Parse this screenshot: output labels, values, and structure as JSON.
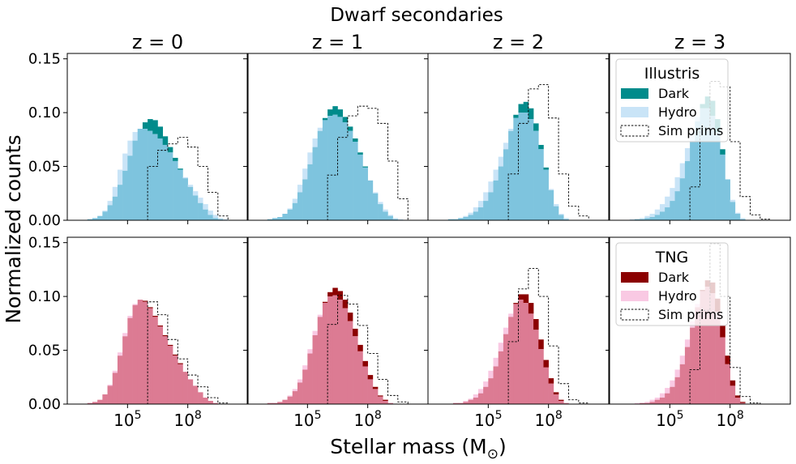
{
  "figure": {
    "suptitle": "Dwarf secondaries",
    "ylabel": "Normalized counts",
    "xlabel": "Stellar mass (M",
    "xlabel_sub": "⊙",
    "xlabel_close": ")"
  },
  "colors": {
    "illustris_dark": "#008b8b",
    "illustris_hydro": "#c9e4f7",
    "illustris_overlap": "#7ec4de",
    "tng_dark": "#8b0000",
    "tng_hydro": "#f9c9e3",
    "tng_overlap": "#dc7b93"
  },
  "legends": {
    "illustris": {
      "title": "Illustris",
      "dark": "Dark",
      "hydro": "Hydro",
      "sim": "Sim prims"
    },
    "tng": {
      "title": "TNG",
      "dark": "Dark",
      "hydro": "Hydro",
      "sim": "Sim prims"
    }
  },
  "chart_data": {
    "type": "histogram-grid",
    "xscale": "log",
    "x_bin_edges_log10": [
      3.0,
      3.5,
      4.0,
      4.5,
      5.0,
      5.5,
      6.0,
      6.5,
      7.0,
      7.5,
      8.0,
      8.5,
      9.0,
      9.5,
      10.0
    ],
    "xlim_log10": [
      2.0,
      11.0
    ],
    "ylim": [
      0,
      0.155
    ],
    "yticks": [
      "0.00",
      "0.05",
      "0.10",
      "0.15"
    ],
    "xticks": [
      {
        "base": "10",
        "exp": "5",
        "log10": 5
      },
      {
        "base": "10",
        "exp": "8",
        "log10": 8
      }
    ],
    "row_labels": [
      "Illustris",
      "TNG"
    ],
    "col_titles": [
      "z = 0",
      "z = 1",
      "z = 2",
      "z = 3"
    ],
    "panels": [
      {
        "row": 0,
        "col": 0,
        "title": "z = 0",
        "x_bin_left": [
          2.5,
          2.75,
          3.0,
          3.25,
          3.5,
          3.75,
          4.0,
          4.25,
          4.5,
          4.75,
          5.0,
          5.25,
          5.5,
          5.75,
          6.0,
          6.25,
          6.5,
          6.75,
          7.0,
          7.25,
          7.5,
          7.75,
          8.0,
          8.25,
          8.5,
          8.75,
          9.0,
          9.25,
          9.5,
          9.75
        ],
        "dark": [
          0.0,
          0.0,
          0.001,
          0.002,
          0.004,
          0.008,
          0.014,
          0.022,
          0.033,
          0.046,
          0.06,
          0.074,
          0.085,
          0.091,
          0.094,
          0.093,
          0.087,
          0.078,
          0.068,
          0.058,
          0.048,
          0.039,
          0.031,
          0.023,
          0.016,
          0.01,
          0.005,
          0.002,
          0.001,
          0.0
        ],
        "hydro": [
          0.0,
          0.0,
          0.001,
          0.002,
          0.004,
          0.009,
          0.018,
          0.031,
          0.047,
          0.062,
          0.074,
          0.082,
          0.085,
          0.085,
          0.083,
          0.08,
          0.076,
          0.07,
          0.063,
          0.055,
          0.047,
          0.04,
          0.033,
          0.027,
          0.021,
          0.015,
          0.009,
          0.005,
          0.002,
          0.001
        ],
        "sim_prims": [
          0.0,
          0.0,
          0.0,
          0.0,
          0.0,
          0.0,
          0.0,
          0.0,
          0.0,
          0.0,
          0.0,
          0.0,
          0.0,
          0.0,
          0.05,
          0.05,
          0.065,
          0.065,
          0.071,
          0.071,
          0.077,
          0.077,
          0.068,
          0.068,
          0.05,
          0.05,
          0.026,
          0.026,
          0.004,
          0.004
        ]
      },
      {
        "row": 0,
        "col": 1,
        "title": "z = 1",
        "x_bin_left": [
          2.5,
          2.75,
          3.0,
          3.25,
          3.5,
          3.75,
          4.0,
          4.25,
          4.5,
          4.75,
          5.0,
          5.25,
          5.5,
          5.75,
          6.0,
          6.25,
          6.5,
          6.75,
          7.0,
          7.25,
          7.5,
          7.75,
          8.0,
          8.25,
          8.5,
          8.75,
          9.0,
          9.25,
          9.5,
          9.75
        ],
        "dark": [
          0.0,
          0.0,
          0.001,
          0.002,
          0.003,
          0.006,
          0.01,
          0.016,
          0.026,
          0.038,
          0.052,
          0.068,
          0.083,
          0.095,
          0.103,
          0.106,
          0.103,
          0.096,
          0.087,
          0.076,
          0.063,
          0.05,
          0.037,
          0.025,
          0.015,
          0.008,
          0.004,
          0.001,
          0.0,
          0.0
        ],
        "hydro": [
          0.0,
          0.0,
          0.001,
          0.002,
          0.003,
          0.006,
          0.011,
          0.02,
          0.033,
          0.048,
          0.063,
          0.076,
          0.086,
          0.093,
          0.097,
          0.098,
          0.096,
          0.091,
          0.083,
          0.073,
          0.061,
          0.049,
          0.037,
          0.026,
          0.017,
          0.01,
          0.005,
          0.002,
          0.001,
          0.0
        ],
        "sim_prims": [
          0.0,
          0.0,
          0.0,
          0.0,
          0.0,
          0.0,
          0.0,
          0.0,
          0.0,
          0.0,
          0.0,
          0.0,
          0.0,
          0.0,
          0.042,
          0.042,
          0.077,
          0.077,
          0.097,
          0.097,
          0.106,
          0.106,
          0.104,
          0.104,
          0.09,
          0.09,
          0.055,
          0.055,
          0.02,
          0.02
        ]
      },
      {
        "row": 0,
        "col": 2,
        "title": "z = 2",
        "x_bin_left": [
          2.5,
          2.75,
          3.0,
          3.25,
          3.5,
          3.75,
          4.0,
          4.25,
          4.5,
          4.75,
          5.0,
          5.25,
          5.5,
          5.75,
          6.0,
          6.25,
          6.5,
          6.75,
          7.0,
          7.25,
          7.5,
          7.75,
          8.0,
          8.25,
          8.5,
          8.75,
          9.0,
          9.25,
          9.5,
          9.75
        ],
        "dark": [
          0.0,
          0.0,
          0.001,
          0.001,
          0.002,
          0.003,
          0.005,
          0.008,
          0.012,
          0.018,
          0.026,
          0.037,
          0.05,
          0.066,
          0.083,
          0.098,
          0.108,
          0.11,
          0.104,
          0.09,
          0.07,
          0.049,
          0.028,
          0.013,
          0.005,
          0.001,
          0.0,
          0.0,
          0.0,
          0.0
        ],
        "hydro": [
          0.0,
          0.0,
          0.001,
          0.001,
          0.002,
          0.004,
          0.007,
          0.012,
          0.018,
          0.026,
          0.036,
          0.047,
          0.059,
          0.072,
          0.085,
          0.095,
          0.1,
          0.1,
          0.094,
          0.083,
          0.066,
          0.047,
          0.029,
          0.015,
          0.006,
          0.002,
          0.0,
          0.0,
          0.0,
          0.0
        ],
        "sim_prims": [
          0.0,
          0.0,
          0.0,
          0.0,
          0.0,
          0.0,
          0.0,
          0.0,
          0.0,
          0.0,
          0.0,
          0.0,
          0.0,
          0.0,
          0.043,
          0.043,
          0.09,
          0.09,
          0.122,
          0.122,
          0.126,
          0.126,
          0.095,
          0.095,
          0.043,
          0.043,
          0.013,
          0.013,
          0.004,
          0.004
        ]
      },
      {
        "row": 0,
        "col": 3,
        "title": "z = 3",
        "x_bin_left": [
          2.5,
          2.75,
          3.0,
          3.25,
          3.5,
          3.75,
          4.0,
          4.25,
          4.5,
          4.75,
          5.0,
          5.25,
          5.5,
          5.75,
          6.0,
          6.25,
          6.5,
          6.75,
          7.0,
          7.25,
          7.5,
          7.75,
          8.0,
          8.25,
          8.5,
          8.75,
          9.0,
          9.25,
          9.5,
          9.75
        ],
        "dark": [
          0.0,
          0.0,
          0.0,
          0.001,
          0.001,
          0.002,
          0.003,
          0.005,
          0.008,
          0.012,
          0.018,
          0.027,
          0.039,
          0.055,
          0.073,
          0.092,
          0.108,
          0.115,
          0.111,
          0.094,
          0.066,
          0.038,
          0.017,
          0.006,
          0.001,
          0.0,
          0.0,
          0.0,
          0.0,
          0.0
        ],
        "hydro": [
          0.0,
          0.0,
          0.001,
          0.001,
          0.002,
          0.004,
          0.006,
          0.01,
          0.015,
          0.022,
          0.03,
          0.04,
          0.053,
          0.067,
          0.082,
          0.096,
          0.104,
          0.104,
          0.097,
          0.082,
          0.061,
          0.038,
          0.019,
          0.007,
          0.002,
          0.0,
          0.0,
          0.0,
          0.0,
          0.0
        ],
        "sim_prims": [
          0.0,
          0.0,
          0.0,
          0.0,
          0.0,
          0.0,
          0.0,
          0.0,
          0.0,
          0.0,
          0.0,
          0.0,
          0.0,
          0.0,
          0.031,
          0.031,
          0.086,
          0.086,
          0.129,
          0.129,
          0.124,
          0.124,
          0.073,
          0.073,
          0.022,
          0.022,
          0.005,
          0.005,
          0.001,
          0.001
        ]
      },
      {
        "row": 1,
        "col": 0,
        "title": "",
        "x_bin_left": [
          2.5,
          2.75,
          3.0,
          3.25,
          3.5,
          3.75,
          4.0,
          4.25,
          4.5,
          4.75,
          5.0,
          5.25,
          5.5,
          5.75,
          6.0,
          6.25,
          6.5,
          6.75,
          7.0,
          7.25,
          7.5,
          7.75,
          8.0,
          8.25,
          8.5,
          8.75,
          9.0,
          9.25,
          9.5,
          9.75
        ],
        "dark": [
          0.0,
          0.0,
          0.001,
          0.002,
          0.004,
          0.009,
          0.017,
          0.029,
          0.045,
          0.063,
          0.08,
          0.092,
          0.097,
          0.096,
          0.09,
          0.082,
          0.073,
          0.064,
          0.055,
          0.046,
          0.038,
          0.03,
          0.023,
          0.017,
          0.011,
          0.006,
          0.003,
          0.001,
          0.0,
          0.0
        ],
        "hydro": [
          0.0,
          0.0,
          0.001,
          0.002,
          0.004,
          0.009,
          0.018,
          0.031,
          0.048,
          0.066,
          0.082,
          0.093,
          0.097,
          0.095,
          0.089,
          0.081,
          0.072,
          0.063,
          0.054,
          0.045,
          0.037,
          0.03,
          0.023,
          0.017,
          0.011,
          0.006,
          0.003,
          0.001,
          0.0,
          0.0
        ],
        "sim_prims": [
          0.0,
          0.0,
          0.0,
          0.0,
          0.0,
          0.0,
          0.0,
          0.0,
          0.0,
          0.0,
          0.0,
          0.0,
          0.0,
          0.0,
          0.095,
          0.095,
          0.083,
          0.083,
          0.06,
          0.06,
          0.042,
          0.042,
          0.027,
          0.027,
          0.016,
          0.016,
          0.006,
          0.006,
          0.001,
          0.001
        ]
      },
      {
        "row": 1,
        "col": 1,
        "title": "",
        "x_bin_left": [
          2.5,
          2.75,
          3.0,
          3.25,
          3.5,
          3.75,
          4.0,
          4.25,
          4.5,
          4.75,
          5.0,
          5.25,
          5.5,
          5.75,
          6.0,
          6.25,
          6.5,
          6.75,
          7.0,
          7.25,
          7.5,
          7.75,
          8.0,
          8.25,
          8.5,
          8.75,
          9.0,
          9.25,
          9.5,
          9.75
        ],
        "dark": [
          0.0,
          0.0,
          0.001,
          0.001,
          0.002,
          0.004,
          0.007,
          0.012,
          0.02,
          0.032,
          0.047,
          0.064,
          0.081,
          0.095,
          0.104,
          0.108,
          0.105,
          0.097,
          0.085,
          0.07,
          0.055,
          0.04,
          0.027,
          0.016,
          0.008,
          0.004,
          0.001,
          0.0,
          0.0,
          0.0
        ],
        "hydro": [
          0.0,
          0.0,
          0.001,
          0.001,
          0.002,
          0.004,
          0.008,
          0.014,
          0.023,
          0.036,
          0.051,
          0.068,
          0.083,
          0.094,
          0.1,
          0.101,
          0.097,
          0.089,
          0.077,
          0.063,
          0.049,
          0.035,
          0.023,
          0.014,
          0.007,
          0.003,
          0.001,
          0.0,
          0.0,
          0.0
        ],
        "sim_prims": [
          0.0,
          0.0,
          0.0,
          0.0,
          0.0,
          0.0,
          0.0,
          0.0,
          0.0,
          0.0,
          0.0,
          0.0,
          0.0,
          0.0,
          0.074,
          0.074,
          0.101,
          0.101,
          0.093,
          0.093,
          0.073,
          0.073,
          0.047,
          0.047,
          0.023,
          0.023,
          0.008,
          0.008,
          0.002,
          0.002
        ]
      },
      {
        "row": 1,
        "col": 2,
        "title": "",
        "x_bin_left": [
          2.5,
          2.75,
          3.0,
          3.25,
          3.5,
          3.75,
          4.0,
          4.25,
          4.5,
          4.75,
          5.0,
          5.25,
          5.5,
          5.75,
          6.0,
          6.25,
          6.5,
          6.75,
          7.0,
          7.25,
          7.5,
          7.75,
          8.0,
          8.25,
          8.5,
          8.75,
          9.0,
          9.25,
          9.5,
          9.75
        ],
        "dark": [
          0.0,
          0.0,
          0.0,
          0.001,
          0.001,
          0.002,
          0.004,
          0.006,
          0.01,
          0.016,
          0.024,
          0.035,
          0.049,
          0.065,
          0.081,
          0.094,
          0.102,
          0.102,
          0.094,
          0.079,
          0.06,
          0.041,
          0.024,
          0.011,
          0.004,
          0.001,
          0.0,
          0.0,
          0.0,
          0.0
        ],
        "hydro": [
          0.0,
          0.0,
          0.0,
          0.001,
          0.001,
          0.003,
          0.005,
          0.009,
          0.014,
          0.021,
          0.031,
          0.043,
          0.057,
          0.071,
          0.084,
          0.093,
          0.097,
          0.094,
          0.084,
          0.069,
          0.051,
          0.034,
          0.019,
          0.009,
          0.003,
          0.001,
          0.0,
          0.0,
          0.0,
          0.0
        ],
        "sim_prims": [
          0.0,
          0.0,
          0.0,
          0.0,
          0.0,
          0.0,
          0.0,
          0.0,
          0.0,
          0.0,
          0.0,
          0.0,
          0.0,
          0.0,
          0.058,
          0.058,
          0.107,
          0.107,
          0.126,
          0.126,
          0.1,
          0.1,
          0.054,
          0.054,
          0.019,
          0.019,
          0.004,
          0.004,
          0.001,
          0.001
        ]
      },
      {
        "row": 1,
        "col": 3,
        "title": "",
        "x_bin_left": [
          2.5,
          2.75,
          3.0,
          3.25,
          3.5,
          3.75,
          4.0,
          4.25,
          4.5,
          4.75,
          5.0,
          5.25,
          5.5,
          5.75,
          6.0,
          6.25,
          6.5,
          6.75,
          7.0,
          7.25,
          7.5,
          7.75,
          8.0,
          8.25,
          8.5,
          8.75,
          9.0,
          9.25,
          9.5,
          9.75
        ],
        "dark": [
          0.0,
          0.0,
          0.0,
          0.0,
          0.001,
          0.001,
          0.002,
          0.004,
          0.006,
          0.01,
          0.016,
          0.025,
          0.037,
          0.053,
          0.071,
          0.09,
          0.106,
          0.115,
          0.113,
          0.098,
          0.073,
          0.045,
          0.022,
          0.008,
          0.002,
          0.0,
          0.0,
          0.0,
          0.0,
          0.0
        ],
        "hydro": [
          0.0,
          0.0,
          0.0,
          0.001,
          0.001,
          0.002,
          0.004,
          0.006,
          0.01,
          0.015,
          0.022,
          0.032,
          0.045,
          0.06,
          0.077,
          0.093,
          0.105,
          0.109,
          0.103,
          0.086,
          0.062,
          0.037,
          0.017,
          0.006,
          0.001,
          0.0,
          0.0,
          0.0,
          0.0,
          0.0
        ],
        "sim_prims": [
          0.0,
          0.0,
          0.0,
          0.0,
          0.0,
          0.0,
          0.0,
          0.0,
          0.0,
          0.0,
          0.0,
          0.0,
          0.0,
          0.0,
          0.032,
          0.032,
          0.087,
          0.087,
          0.149,
          0.149,
          0.1,
          0.1,
          0.034,
          0.034,
          0.007,
          0.007,
          0.001,
          0.001,
          0.0,
          0.0
        ]
      }
    ]
  }
}
